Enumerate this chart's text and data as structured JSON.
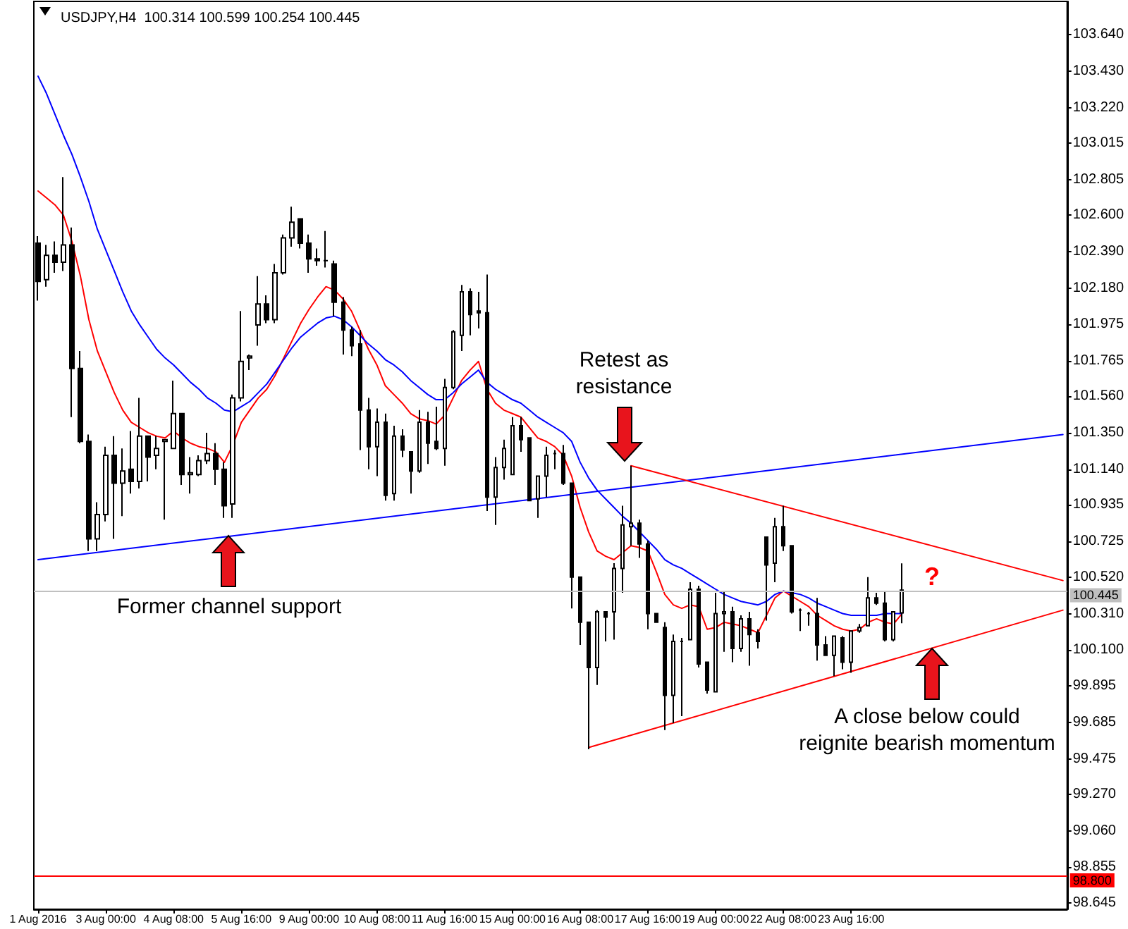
{
  "chart_data": {
    "type": "candlestick",
    "title": "USDJPY,H4  100.314 100.599 100.254 100.445",
    "categories": [
      "1 Aug 2016",
      null,
      null,
      null,
      null,
      null,
      null,
      null,
      "3 Aug 00:00",
      null,
      null,
      null,
      null,
      null,
      null,
      null,
      "4 Aug 08:00",
      null,
      null,
      null,
      null,
      null,
      null,
      null,
      "5 Aug 16:00",
      null,
      null,
      null,
      null,
      null,
      null,
      null,
      "9 Aug 00:00",
      null,
      null,
      null,
      null,
      null,
      null,
      null,
      "10 Aug 08:00",
      null,
      null,
      null,
      null,
      null,
      null,
      null,
      "11 Aug 16:00",
      null,
      null,
      null,
      null,
      null,
      null,
      null,
      "15 Aug 00:00",
      null,
      null,
      null,
      null,
      null,
      null,
      null,
      "16 Aug 08:00",
      null,
      null,
      null,
      null,
      null,
      null,
      null,
      "17 Aug 16:00",
      null,
      null,
      null,
      null,
      null,
      null,
      null,
      "19 Aug 00:00",
      null,
      null,
      null,
      null,
      null,
      null,
      null,
      "22 Aug 08:00",
      null,
      null,
      null,
      null,
      null,
      null,
      null,
      "23 Aug 16:00",
      null,
      null,
      null,
      null,
      null,
      null,
      null,
      null,
      null,
      null,
      null,
      null,
      null,
      null,
      null,
      null,
      null,
      null,
      null,
      null,
      null,
      null,
      null,
      null,
      null
    ],
    "ohlc": [
      [
        102.44,
        102.48,
        102.11,
        102.22
      ],
      [
        102.23,
        102.43,
        102.19,
        102.37
      ],
      [
        102.37,
        102.45,
        102.27,
        102.33
      ],
      [
        102.33,
        102.82,
        102.28,
        102.43
      ],
      [
        102.43,
        102.53,
        101.44,
        101.72
      ],
      [
        101.72,
        101.82,
        101.29,
        101.3
      ],
      [
        101.3,
        101.34,
        100.67,
        100.74
      ],
      [
        100.74,
        100.95,
        100.67,
        100.88
      ],
      [
        100.88,
        101.27,
        100.84,
        101.22
      ],
      [
        101.22,
        101.33,
        100.74,
        101.06
      ],
      [
        101.06,
        101.26,
        100.87,
        101.13
      ],
      [
        101.14,
        101.36,
        101.0,
        101.07
      ],
      [
        101.07,
        101.55,
        101.03,
        101.33
      ],
      [
        101.33,
        101.33,
        101.07,
        101.21
      ],
      [
        101.22,
        101.33,
        101.14,
        101.26
      ],
      [
        101.3,
        101.31,
        100.85,
        101.31
      ],
      [
        101.26,
        101.65,
        101.26,
        101.46
      ],
      [
        101.46,
        101.46,
        101.05,
        101.11
      ],
      [
        101.11,
        101.21,
        101.0,
        101.12
      ],
      [
        101.11,
        101.22,
        101.1,
        101.19
      ],
      [
        101.19,
        101.35,
        101.17,
        101.23
      ],
      [
        101.23,
        101.29,
        101.05,
        101.14
      ],
      [
        101.14,
        101.18,
        100.86,
        100.93
      ],
      [
        100.94,
        101.57,
        100.86,
        101.55
      ],
      [
        101.55,
        102.05,
        101.53,
        101.76
      ],
      [
        101.78,
        101.8,
        101.71,
        101.79
      ],
      [
        101.97,
        102.25,
        101.85,
        102.09
      ],
      [
        102.09,
        102.14,
        101.98,
        102.0
      ],
      [
        102.0,
        102.32,
        101.98,
        102.27
      ],
      [
        102.27,
        102.49,
        102.26,
        102.47
      ],
      [
        102.47,
        102.65,
        102.42,
        102.56
      ],
      [
        102.58,
        102.58,
        102.41,
        102.44
      ],
      [
        102.44,
        102.49,
        102.27,
        102.35
      ],
      [
        102.35,
        102.41,
        102.31,
        102.34
      ],
      [
        102.34,
        102.51,
        102.3,
        102.34
      ],
      [
        102.32,
        102.34,
        102.02,
        102.1
      ],
      [
        102.1,
        102.13,
        101.8,
        101.94
      ],
      [
        101.94,
        101.96,
        101.79,
        101.85
      ],
      [
        101.86,
        101.94,
        101.25,
        101.48
      ],
      [
        101.48,
        101.55,
        101.14,
        101.27
      ],
      [
        101.27,
        101.49,
        101.1,
        101.41
      ],
      [
        101.41,
        101.46,
        100.96,
        100.99
      ],
      [
        101.0,
        101.39,
        100.96,
        101.33
      ],
      [
        101.33,
        101.37,
        101.21,
        101.25
      ],
      [
        101.24,
        101.24,
        101.0,
        101.13
      ],
      [
        101.13,
        101.48,
        101.12,
        101.41
      ],
      [
        101.41,
        101.47,
        101.17,
        101.29
      ],
      [
        101.3,
        101.5,
        101.25,
        101.26
      ],
      [
        101.26,
        101.66,
        101.16,
        101.61
      ],
      [
        101.61,
        101.94,
        101.6,
        101.93
      ],
      [
        101.91,
        102.2,
        101.82,
        102.16
      ],
      [
        102.16,
        102.18,
        101.91,
        102.03
      ],
      [
        102.05,
        102.16,
        101.95,
        102.04
      ],
      [
        102.04,
        102.26,
        100.9,
        100.98
      ],
      [
        100.98,
        101.21,
        100.82,
        101.15
      ],
      [
        101.15,
        101.31,
        101.08,
        101.26
      ],
      [
        101.11,
        101.44,
        101.11,
        101.39
      ],
      [
        101.39,
        101.44,
        101.24,
        101.31
      ],
      [
        101.32,
        101.32,
        100.96,
        100.96
      ],
      [
        100.97,
        101.1,
        100.86,
        101.1
      ],
      [
        101.1,
        101.27,
        100.98,
        101.22
      ],
      [
        101.23,
        101.25,
        101.14,
        101.23
      ],
      [
        101.23,
        101.28,
        101.05,
        101.06
      ],
      [
        101.06,
        101.06,
        100.34,
        100.52
      ],
      [
        100.52,
        100.52,
        100.13,
        100.26
      ],
      [
        100.26,
        100.26,
        99.53,
        100.0
      ],
      [
        100.0,
        100.33,
        99.9,
        100.32
      ],
      [
        100.32,
        100.32,
        100.15,
        100.29
      ],
      [
        100.32,
        100.6,
        100.16,
        100.57
      ],
      [
        100.57,
        100.93,
        100.43,
        100.82
      ],
      [
        100.81,
        101.16,
        100.7,
        100.83
      ],
      [
        100.83,
        100.85,
        100.63,
        100.71
      ],
      [
        100.71,
        100.73,
        100.22,
        100.31
      ],
      [
        100.31,
        100.31,
        100.26,
        100.26
      ],
      [
        100.23,
        100.26,
        99.64,
        99.84
      ],
      [
        99.84,
        100.19,
        99.68,
        100.15
      ],
      [
        100.15,
        100.17,
        99.72,
        100.15
      ],
      [
        100.16,
        100.49,
        100.16,
        100.45
      ],
      [
        100.45,
        100.47,
        100.0,
        100.02
      ],
      [
        100.03,
        100.03,
        99.85,
        99.87
      ],
      [
        99.86,
        100.43,
        99.86,
        100.31
      ],
      [
        100.31,
        100.44,
        100.09,
        100.32
      ],
      [
        100.32,
        100.35,
        100.03,
        100.11
      ],
      [
        100.11,
        100.3,
        100.09,
        100.28
      ],
      [
        100.28,
        100.32,
        100.01,
        100.19
      ],
      [
        100.2,
        100.22,
        100.11,
        100.15
      ],
      [
        100.75,
        100.75,
        100.27,
        100.59
      ],
      [
        100.6,
        100.86,
        100.49,
        100.81
      ],
      [
        100.81,
        100.93,
        100.67,
        100.7
      ],
      [
        100.7,
        100.7,
        100.31,
        100.32
      ],
      [
        100.33,
        100.34,
        100.21,
        100.33
      ],
      [
        100.31,
        100.32,
        100.24,
        100.31
      ],
      [
        100.31,
        100.4,
        100.04,
        100.13
      ],
      [
        100.13,
        100.18,
        100.07,
        100.07
      ],
      [
        100.07,
        100.18,
        99.95,
        100.18
      ],
      [
        100.17,
        100.18,
        99.99,
        100.03
      ],
      [
        100.03,
        100.21,
        99.97,
        100.21
      ],
      [
        100.21,
        100.25,
        100.2,
        100.23
      ],
      [
        100.24,
        100.52,
        100.24,
        100.4
      ],
      [
        100.4,
        100.43,
        100.36,
        100.37
      ],
      [
        100.37,
        100.44,
        100.15,
        100.16
      ],
      [
        100.16,
        100.32,
        100.15,
        100.32
      ],
      [
        100.314,
        100.599,
        100.254,
        100.445
      ],
      null,
      null,
      null,
      null,
      null,
      null,
      null,
      null,
      null,
      null,
      null,
      null,
      null,
      null,
      null,
      null,
      null,
      null,
      null
    ],
    "series": [
      {
        "type": "line",
        "color": "#ff0000",
        "values": [
          102.74,
          102.7,
          102.66,
          102.6,
          102.45,
          102.25,
          102.0,
          101.82,
          101.7,
          101.58,
          101.48,
          101.41,
          101.38,
          101.35,
          101.33,
          101.32,
          101.36,
          101.32,
          101.29,
          101.27,
          101.26,
          101.24,
          101.18,
          101.28,
          101.41,
          101.48,
          101.55,
          101.6,
          101.68,
          101.78,
          101.88,
          101.98,
          102.06,
          102.13,
          102.19,
          102.17,
          102.12,
          102.05,
          101.94,
          101.83,
          101.74,
          101.62,
          101.57,
          101.52,
          101.46,
          101.43,
          101.42,
          101.4,
          101.45,
          101.55,
          101.65,
          101.71,
          101.76,
          101.6,
          101.52,
          101.48,
          101.46,
          101.44,
          101.38,
          101.32,
          101.3,
          101.27,
          101.22,
          101.1,
          100.92,
          100.78,
          100.67,
          100.64,
          100.62,
          100.66,
          100.7,
          100.69,
          100.67,
          100.55,
          100.42,
          100.36,
          100.34,
          100.36,
          100.35,
          100.22,
          100.23,
          100.26,
          100.25,
          100.24,
          100.22,
          100.2,
          100.3,
          100.4,
          100.44,
          100.41,
          100.38,
          100.35,
          100.3,
          100.27,
          100.24,
          100.22,
          100.21,
          100.22,
          100.26,
          100.28,
          100.26,
          100.25,
          100.31,
          null,
          null,
          null,
          null,
          null,
          null,
          null,
          null,
          null,
          null,
          null,
          null,
          null,
          null,
          null,
          null,
          null,
          null,
          null
        ]
      },
      {
        "type": "line",
        "color": "#0000ff",
        "values": [
          103.4,
          103.3,
          103.18,
          103.06,
          102.95,
          102.82,
          102.68,
          102.52,
          102.4,
          102.28,
          102.16,
          102.05,
          101.97,
          101.9,
          101.83,
          101.78,
          101.74,
          101.69,
          101.64,
          101.6,
          101.55,
          101.52,
          101.48,
          101.47,
          101.5,
          101.53,
          101.58,
          101.63,
          101.7,
          101.77,
          101.84,
          101.9,
          101.94,
          101.98,
          102.01,
          102.02,
          102.0,
          101.96,
          101.91,
          101.86,
          101.82,
          101.77,
          101.74,
          101.7,
          101.65,
          101.61,
          101.57,
          101.54,
          101.54,
          101.58,
          101.63,
          101.67,
          101.71,
          101.64,
          101.6,
          101.57,
          101.54,
          101.52,
          101.48,
          101.44,
          101.41,
          101.38,
          101.35,
          101.3,
          101.18,
          101.09,
          101.02,
          100.97,
          100.92,
          100.87,
          100.83,
          100.78,
          100.73,
          100.68,
          100.62,
          100.59,
          100.57,
          100.54,
          100.51,
          100.48,
          100.45,
          100.42,
          100.4,
          100.38,
          100.37,
          100.36,
          100.38,
          100.42,
          100.44,
          100.43,
          100.42,
          100.4,
          100.37,
          100.35,
          100.33,
          100.31,
          100.3,
          100.3,
          100.3,
          100.3,
          100.31,
          100.31,
          100.31,
          null,
          null,
          null,
          null,
          null,
          null,
          null,
          null,
          null,
          null,
          null,
          null,
          null,
          null,
          null,
          null,
          null,
          null,
          null
        ]
      },
      {
        "type": "line",
        "color": "#0000ff",
        "values": [
          100.62,
          null,
          null,
          null,
          null,
          null,
          null,
          null,
          null,
          null,
          null,
          null,
          null,
          null,
          null,
          null,
          null,
          null,
          null,
          null,
          null,
          null,
          null,
          null,
          null,
          null,
          null,
          null,
          null,
          null,
          null,
          null,
          null,
          null,
          null,
          null,
          null,
          null,
          null,
          null,
          null,
          null,
          null,
          null,
          null,
          null,
          null,
          null,
          null,
          null,
          null,
          null,
          null,
          null,
          null,
          null,
          null,
          null,
          null,
          null,
          null,
          null,
          null,
          null,
          null,
          null,
          null,
          null,
          null,
          null,
          null,
          null,
          null,
          null,
          null,
          null,
          null,
          null,
          null,
          null,
          null,
          null,
          null,
          null,
          null,
          null,
          null,
          null,
          null,
          null,
          null,
          null,
          null,
          null,
          null,
          null,
          null,
          null,
          null,
          null,
          null,
          null,
          null,
          null,
          null,
          null,
          null,
          null,
          null,
          null,
          null,
          null,
          null,
          null,
          null,
          null,
          null,
          null,
          null,
          null,
          null,
          101.34
        ]
      },
      {
        "type": "line",
        "color": "#ff0000",
        "values": [
          null,
          null,
          null,
          null,
          null,
          null,
          null,
          null,
          null,
          null,
          null,
          null,
          null,
          null,
          null,
          null,
          null,
          null,
          null,
          null,
          null,
          null,
          null,
          null,
          null,
          null,
          null,
          null,
          null,
          null,
          null,
          null,
          null,
          null,
          null,
          null,
          null,
          null,
          null,
          null,
          null,
          null,
          null,
          null,
          null,
          null,
          null,
          null,
          null,
          null,
          null,
          null,
          null,
          null,
          null,
          null,
          null,
          null,
          null,
          null,
          null,
          null,
          null,
          null,
          null,
          null,
          null,
          null,
          null,
          null,
          101.16,
          null,
          null,
          null,
          null,
          null,
          null,
          null,
          null,
          null,
          null,
          null,
          null,
          null,
          null,
          null,
          null,
          null,
          null,
          null,
          null,
          null,
          null,
          null,
          null,
          null,
          null,
          null,
          null,
          null,
          null,
          null,
          null,
          null,
          null,
          null,
          null,
          null,
          null,
          null,
          null,
          null,
          null,
          null,
          null,
          null,
          null,
          null,
          null,
          null,
          null,
          100.5
        ]
      },
      {
        "type": "line",
        "color": "#ff0000",
        "values": [
          null,
          null,
          null,
          null,
          null,
          null,
          null,
          null,
          null,
          null,
          null,
          null,
          null,
          null,
          null,
          null,
          null,
          null,
          null,
          null,
          null,
          null,
          null,
          null,
          null,
          null,
          null,
          null,
          null,
          null,
          null,
          null,
          null,
          null,
          null,
          null,
          null,
          null,
          null,
          null,
          null,
          null,
          null,
          null,
          null,
          null,
          null,
          null,
          null,
          null,
          null,
          null,
          null,
          null,
          null,
          null,
          null,
          null,
          null,
          null,
          null,
          null,
          null,
          null,
          null,
          99.54,
          null,
          null,
          null,
          null,
          null,
          null,
          null,
          null,
          null,
          null,
          null,
          null,
          null,
          null,
          null,
          null,
          null,
          null,
          null,
          null,
          null,
          null,
          null,
          null,
          null,
          null,
          null,
          null,
          null,
          null,
          null,
          null,
          null,
          null,
          null,
          null,
          null,
          null,
          null,
          null,
          null,
          null,
          null,
          null,
          null,
          null,
          null,
          null,
          null,
          null,
          null,
          null,
          null,
          null,
          null,
          100.33
        ]
      }
    ],
    "ylim": [
      98.61,
      103.83
    ],
    "yticks": [
      {
        "value": 98.645,
        "label": "98.645"
      },
      {
        "value": 98.855,
        "label": "98.855"
      },
      {
        "value": 99.06,
        "label": "99.060"
      },
      {
        "value": 99.27,
        "label": "99.270"
      },
      {
        "value": 99.475,
        "label": "99.475"
      },
      {
        "value": 99.685,
        "label": "99.685"
      },
      {
        "value": 99.895,
        "label": "99.895"
      },
      {
        "value": 100.1,
        "label": "100.100"
      },
      {
        "value": 100.31,
        "label": "100.310"
      },
      {
        "value": 100.52,
        "label": "100.520"
      },
      {
        "value": 100.725,
        "label": "100.725"
      },
      {
        "value": 100.935,
        "label": "100.935"
      },
      {
        "value": 101.14,
        "label": "101.140"
      },
      {
        "value": 101.35,
        "label": "101.350"
      },
      {
        "value": 101.56,
        "label": "101.560"
      },
      {
        "value": 101.765,
        "label": "101.765"
      },
      {
        "value": 101.975,
        "label": "101.975"
      },
      {
        "value": 102.18,
        "label": "102.180"
      },
      {
        "value": 102.39,
        "label": "102.390"
      },
      {
        "value": 102.6,
        "label": "102.600"
      },
      {
        "value": 102.805,
        "label": "102.805"
      },
      {
        "value": 103.015,
        "label": "103.015"
      },
      {
        "value": 103.22,
        "label": "103.220"
      },
      {
        "value": 103.43,
        "label": "103.430"
      },
      {
        "value": 103.64,
        "label": "103.640"
      }
    ],
    "ref_lines": [
      {
        "axis": "y",
        "value": 100.445,
        "label": "100.445",
        "color": "#c0c0c0"
      },
      {
        "axis": "y",
        "value": 98.8,
        "label": "98.800",
        "color": "#ff0000"
      }
    ],
    "annotations": [
      "Former channel support",
      "Retest as resistance",
      "A close below could reignite bearish momentum",
      "?"
    ],
    "grid": false
  }
}
